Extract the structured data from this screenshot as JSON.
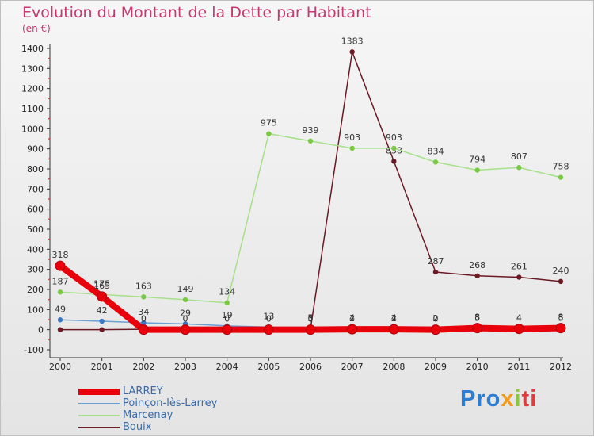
{
  "title": "Evolution du Montant de la Dette par Habitant",
  "unit": "(en €)",
  "logo": {
    "part1": "Pro",
    "part2": "x",
    "part3": "i",
    "part4": "ti"
  },
  "chart_data": {
    "type": "line",
    "title": "Evolution du Montant de la Dette par Habitant",
    "ylabel": "(en €)",
    "xlabel": "",
    "ylim": [
      -100,
      1400
    ],
    "yticks": [
      -100,
      0,
      100,
      200,
      300,
      400,
      500,
      600,
      700,
      800,
      900,
      1000,
      1100,
      1200,
      1300,
      1400
    ],
    "categories": [
      "2000",
      "2001",
      "2002",
      "2003",
      "2004",
      "2005",
      "2006",
      "2007",
      "2008",
      "2009",
      "2010",
      "2011",
      "2012"
    ],
    "series": [
      {
        "name": "Bouix",
        "color": "#6b1a24",
        "marker": "#6b1a24",
        "values": [
          0,
          0,
          2,
          2,
          2,
          2,
          3,
          1383,
          838,
          287,
          268,
          261,
          240
        ],
        "labels": [
          null,
          null,
          null,
          null,
          null,
          null,
          "3",
          "1383",
          "838",
          "287",
          "268",
          "261",
          "240"
        ]
      },
      {
        "name": "Marcenay",
        "color": "#a6e08a",
        "marker": "#7ac943",
        "values": [
          187,
          175,
          163,
          149,
          134,
          975,
          939,
          903,
          903,
          834,
          794,
          807,
          758
        ],
        "labels": [
          "187",
          "175",
          "163",
          "149",
          "134",
          "975",
          "939",
          "903",
          "903",
          "834",
          "794",
          "807",
          "758"
        ]
      },
      {
        "name": "Poinçon-lès-Larrey",
        "color": "#6a9fd4",
        "marker": "#3a78c2",
        "values": [
          49,
          42,
          34,
          29,
          19,
          13,
          5,
          4,
          4,
          2,
          5,
          4,
          5
        ],
        "labels": [
          "49",
          "42",
          "34",
          "29",
          "19",
          "13",
          "5",
          "4",
          "4",
          "2",
          "5",
          "4",
          "5"
        ]
      },
      {
        "name": "LARREY",
        "color": "#e8000b",
        "marker": "#e8000b",
        "values": [
          318,
          165,
          0,
          0,
          0,
          0,
          0,
          2,
          2,
          0,
          8,
          4,
          8
        ],
        "labels": [
          "318",
          "165",
          "0",
          "0",
          "0",
          "0",
          "0",
          "2",
          "2",
          "0",
          "8",
          "4",
          "8"
        ]
      }
    ],
    "legend": [
      "LARREY",
      "Poinçon-lès-Larrey",
      "Marcenay",
      "Bouix"
    ],
    "grid": false,
    "legend_position": "bottom-left"
  }
}
